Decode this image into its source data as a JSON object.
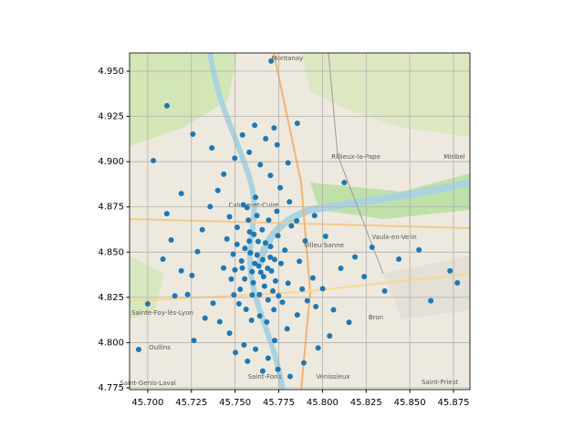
{
  "chart_data": {
    "type": "scatter",
    "color": "#1f77b4",
    "grid": true,
    "xlim": [
      45.6896,
      45.8844
    ],
    "ylim": [
      4.774,
      4.9601
    ],
    "xticks": [
      {
        "value": 45.7,
        "label": "45.700"
      },
      45.725,
      {
        "value": 45.75,
        "label": "45.750"
      },
      45.775,
      {
        "value": 45.8,
        "label": "45.800"
      },
      45.825,
      {
        "value": 45.85,
        "label": "45.850"
      },
      45.875
    ],
    "yticks": [
      4.775,
      {
        "value": 4.8,
        "label": "4.800"
      },
      4.825,
      {
        "value": 4.85,
        "label": "4.850"
      },
      4.875,
      {
        "value": 4.9,
        "label": "4.900"
      },
      4.925,
      {
        "value": 4.95,
        "label": "4.950"
      }
    ],
    "x": [
      45.7556,
      45.7612,
      45.7583,
      45.7647,
      45.7701,
      45.7529,
      45.7674,
      45.7598,
      45.7731,
      45.7489,
      45.7625,
      45.7563,
      45.7689,
      45.7512,
      45.7745,
      45.7604,
      45.7658,
      45.7541,
      45.7716,
      45.7587,
      45.7632,
      45.7478,
      45.7692,
      45.7569,
      45.7763,
      45.7522,
      45.7641,
      45.7597,
      45.7708,
      45.7453,
      45.7785,
      45.7668,
      45.7617,
      45.7537,
      45.7722,
      45.7581,
      45.7655,
      45.7493,
      45.7749,
      45.7626,
      45.7555,
      45.7803,
      45.7686,
      45.7511,
      45.7739,
      45.7594,
      45.7663,
      45.7434,
      45.7822,
      45.7576,
      45.7703,
      45.7639,
      45.7468,
      45.7771,
      45.7608,
      45.7547,
      45.7681,
      45.7726,
      45.7499,
      45.7636,
      45.7401,
      45.7357,
      45.7312,
      45.7285,
      45.7253,
      45.7228,
      45.7374,
      45.7412,
      45.7468,
      45.7551,
      45.7617,
      45.7689,
      45.7658,
      45.7726,
      45.7798,
      45.7856,
      45.7913,
      45.7962,
      45.7884,
      45.7945,
      45.7868,
      45.7901,
      45.7852,
      45.7811,
      45.7758,
      45.7702,
      45.7644,
      45.7581,
      45.7675,
      45.7723,
      45.7612,
      45.7542,
      45.7498,
      45.7435,
      45.7367,
      45.7258,
      45.7192,
      45.7134,
      45.7109,
      45.7087,
      45.7032,
      45.711,
      45.7706,
      45.6948,
      45.7,
      45.8772,
      45.873,
      45.8437,
      45.8552,
      45.8284,
      45.8186,
      45.8105,
      45.8239,
      45.8001,
      45.8063,
      45.8152,
      45.8041,
      45.7975,
      45.7893,
      45.7815,
      45.7745,
      45.7571,
      45.7502,
      45.8018,
      45.7955,
      45.8125,
      45.8356,
      45.862,
      45.7803,
      45.7741,
      45.7856,
      45.7264,
      45.7328,
      45.7192,
      45.7155
    ],
    "values": [
      4.8521,
      4.8437,
      4.8612,
      4.8389,
      4.8472,
      4.8295,
      4.8551,
      4.8263,
      4.8341,
      4.8488,
      4.8702,
      4.8184,
      4.8236,
      4.8637,
      4.8591,
      4.8331,
      4.8458,
      4.8412,
      4.8285,
      4.8496,
      4.8559,
      4.8351,
      4.8677,
      4.8746,
      4.8437,
      4.8215,
      4.8147,
      4.8392,
      4.8396,
      4.8573,
      4.8511,
      4.8312,
      4.8803,
      4.8451,
      4.8182,
      4.8561,
      4.8624,
      4.8264,
      4.8258,
      4.8484,
      4.8352,
      4.8328,
      4.8411,
      4.8543,
      4.8726,
      4.8123,
      4.8365,
      4.8412,
      4.8645,
      4.8677,
      4.8531,
      4.8265,
      4.8696,
      4.8223,
      4.8598,
      4.8761,
      4.8114,
      4.8459,
      4.8402,
      4.8423,
      4.8841,
      4.8752,
      4.8624,
      4.8503,
      4.8371,
      4.8266,
      4.8218,
      4.8115,
      4.8052,
      4.7987,
      4.7963,
      4.7914,
      4.7843,
      4.8012,
      4.8076,
      4.8153,
      4.8231,
      4.8199,
      4.8296,
      4.8357,
      4.8449,
      4.8562,
      4.8673,
      4.8778,
      4.8856,
      4.8924,
      4.8983,
      4.9052,
      4.9127,
      4.9186,
      4.9201,
      4.9148,
      4.9019,
      4.8931,
      4.9076,
      4.9152,
      4.8824,
      4.8567,
      4.8712,
      4.8461,
      4.9006,
      4.9309,
      4.9556,
      4.7962,
      4.8214,
      4.833,
      4.8396,
      4.8461,
      4.8512,
      4.8527,
      4.8473,
      4.8411,
      4.8365,
      4.8298,
      4.8181,
      4.8112,
      4.8037,
      4.7971,
      4.7888,
      4.7813,
      4.7852,
      4.7897,
      4.7945,
      4.8587,
      4.8702,
      4.8884,
      4.8285,
      4.8231,
      4.8993,
      4.9093,
      4.9212,
      4.8012,
      4.8135,
      4.8397,
      4.8258
    ]
  },
  "map": {
    "labels": [
      "Villeurbanne",
      "Vaulx-en-Velin",
      "Oullins",
      "Vénissieux",
      "Rillieux-la-Pape",
      "Bron",
      "Saint-Priest",
      "Sainte-Foy-lès-Lyon",
      "Saint-Fons",
      "Miribel",
      "Caluire-et-Cuire",
      "Montanay",
      "Saint-Genis-Laval"
    ]
  }
}
